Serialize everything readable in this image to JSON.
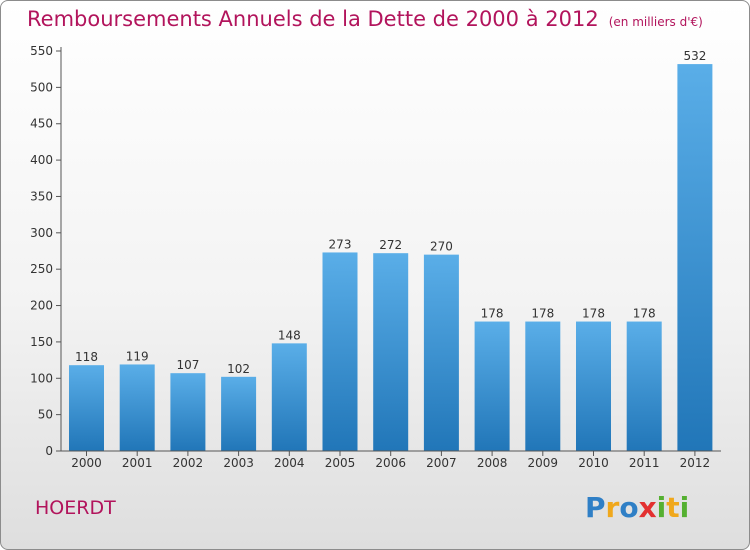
{
  "title": "Remboursements Annuels de la Dette de 2000 à 2012",
  "unit_note": "(en milliers d'€)",
  "commune": "HOERDT",
  "logo": {
    "text": "Proxiti",
    "letters": [
      {
        "char": "P",
        "color": "#2f7fc6"
      },
      {
        "char": "r",
        "color": "#f0a81c"
      },
      {
        "char": "o",
        "color": "#2f7fc6"
      },
      {
        "char": "x",
        "color": "#e33030"
      },
      {
        "char": "i",
        "color": "#55b031"
      },
      {
        "char": "t",
        "color": "#f0a81c"
      },
      {
        "char": "i",
        "color": "#55b031"
      }
    ]
  },
  "chart_data": {
    "type": "bar",
    "categories": [
      "2000",
      "2001",
      "2002",
      "2003",
      "2004",
      "2005",
      "2006",
      "2007",
      "2008",
      "2009",
      "2010",
      "2011",
      "2012"
    ],
    "values": [
      118,
      119,
      107,
      102,
      148,
      273,
      272,
      270,
      178,
      178,
      178,
      178,
      532
    ],
    "yticks": [
      "0",
      "50",
      "100",
      "150",
      "200",
      "250",
      "300",
      "350",
      "400",
      "450",
      "500",
      "550"
    ],
    "ylim": [
      0,
      550
    ],
    "grid": false,
    "colors": {
      "bar_light": "#5aaee8",
      "bar_dark": "#2176b8",
      "axis": "#555555",
      "text": "#333333"
    }
  }
}
